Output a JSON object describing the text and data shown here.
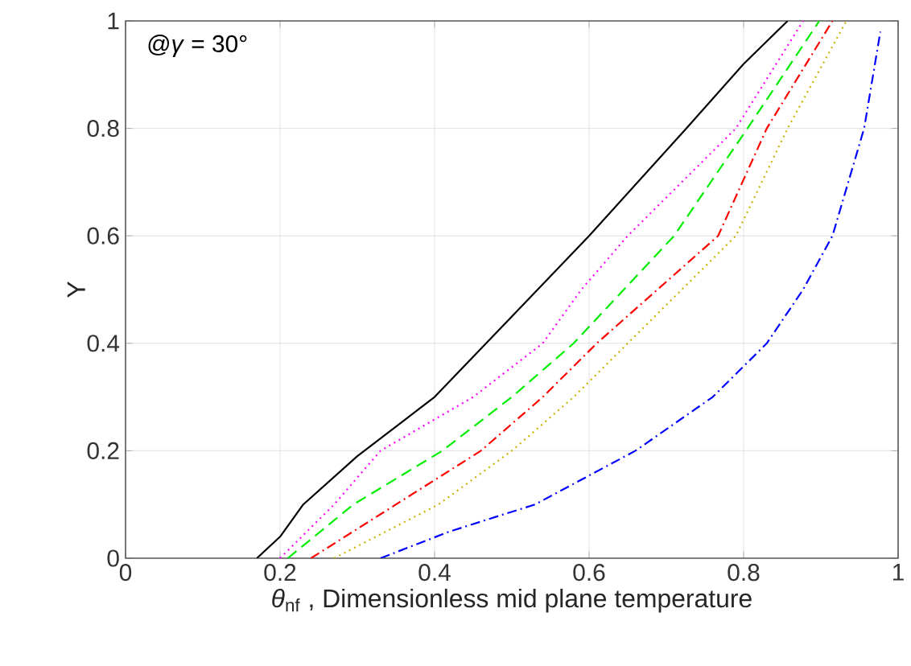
{
  "chart_data": {
    "type": "line",
    "xlabel": "*θ*$_{nf}$ , Dimensionless mid plane temperature",
    "ylabel": "Y",
    "annotations": [
      "@*γ* = 30°"
    ],
    "xlim": [
      0,
      1
    ],
    "ylim": [
      0,
      1
    ],
    "xticks": [
      0,
      0.2,
      0.4,
      0.6,
      0.8,
      1
    ],
    "yticks": [
      0,
      0.2,
      0.4,
      0.6,
      0.8,
      1
    ],
    "grid": true,
    "series": [
      {
        "color": "#000000",
        "line_style": "solid",
        "x": [
          0.17,
          0.2,
          0.23,
          0.3,
          0.4,
          0.5,
          0.6,
          0.726,
          0.8,
          0.857
        ],
        "values": [
          0,
          0.04,
          0.1,
          0.19,
          0.3,
          0.45,
          0.6,
          0.8,
          0.92,
          1
        ]
      },
      {
        "color": "#ff00ff",
        "line_style": "dotted",
        "x": [
          0.2,
          0.27,
          0.33,
          0.45,
          0.54,
          0.59,
          0.65,
          0.79,
          0.877
        ],
        "values": [
          0,
          0.1,
          0.2,
          0.3,
          0.4,
          0.5,
          0.6,
          0.8,
          1
        ]
      },
      {
        "color": "#00ee00",
        "line_style": "dashed",
        "x": [
          0.21,
          0.295,
          0.41,
          0.5,
          0.58,
          0.71,
          0.805,
          0.898
        ],
        "values": [
          0,
          0.1,
          0.2,
          0.3,
          0.4,
          0.6,
          0.8,
          1
        ]
      },
      {
        "color": "#ff0000",
        "line_style": "dashdot",
        "x": [
          0.24,
          0.35,
          0.46,
          0.54,
          0.61,
          0.767,
          0.83,
          0.915
        ],
        "values": [
          0,
          0.1,
          0.2,
          0.3,
          0.4,
          0.6,
          0.8,
          1
        ]
      },
      {
        "color": "#c8b400",
        "line_style": "dotted",
        "x": [
          0.27,
          0.405,
          0.5,
          0.58,
          0.65,
          0.79,
          0.857,
          0.933
        ],
        "values": [
          0,
          0.1,
          0.2,
          0.3,
          0.4,
          0.6,
          0.8,
          1
        ]
      },
      {
        "color": "#0000ff",
        "line_style": "dashdot",
        "x": [
          0.33,
          0.42,
          0.53,
          0.66,
          0.76,
          0.83,
          0.877,
          0.915,
          0.956,
          0.977
        ],
        "values": [
          0,
          0.05,
          0.1,
          0.2,
          0.3,
          0.4,
          0.5,
          0.6,
          0.8,
          0.98
        ]
      }
    ]
  }
}
